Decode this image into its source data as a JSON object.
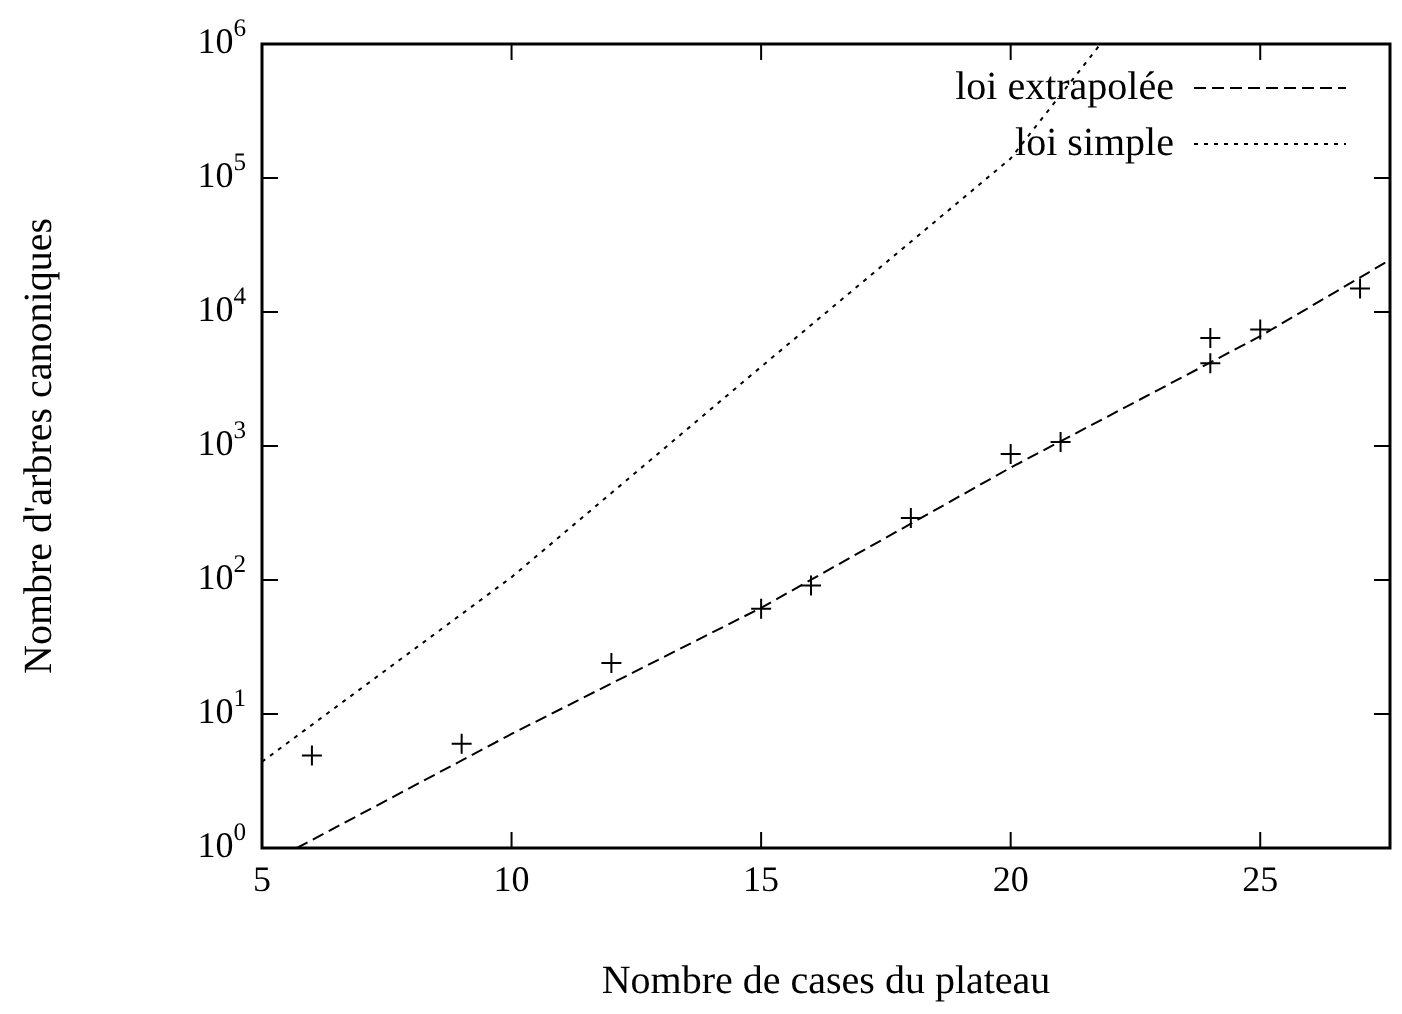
{
  "chart_data": {
    "type": "scatter",
    "xlabel": "Nombre de cases du plateau",
    "ylabel": "Nombre d'arbres canoniques",
    "log": "y",
    "grid": false,
    "legend": "top right",
    "xlim": [
      5,
      27.6
    ],
    "xticks": [
      5,
      10,
      15,
      20,
      25
    ],
    "ylim": [
      1,
      1000000
    ],
    "yticks": [
      {
        "value": 1,
        "label": "10$^{0}$"
      },
      {
        "value": 10,
        "label": "10$^{1}$"
      },
      {
        "value": 100,
        "label": "10$^{2}$"
      },
      {
        "value": 1000,
        "label": "10$^{3}$"
      },
      {
        "value": 10000,
        "label": "10$^{4}$"
      },
      {
        "value": 100000,
        "label": "10$^{5}$"
      },
      {
        "value": 1000000,
        "label": "10$^{6}$"
      }
    ],
    "series": [
      {
        "color": "#000000",
        "marker": "cross",
        "x": [
          6,
          9,
          12,
          15,
          16,
          18,
          20,
          21,
          24,
          24,
          25,
          27
        ],
        "values": [
          4.9,
          6,
          24,
          61,
          91,
          290,
          870,
          1070,
          4150,
          6400,
          7400,
          15000
        ]
      },
      {
        "type": "line",
        "name": "loi extrapolée",
        "color": "#000000",
        "line_style": "dashed",
        "marker": "none",
        "x": [
          5.7,
          10,
          15,
          20,
          25,
          27.6
        ],
        "values": [
          1,
          7.1,
          62,
          690,
          6600,
          24500
        ]
      },
      {
        "type": "line",
        "name": "loi simple",
        "color": "#000000",
        "line_style": "dotted",
        "marker": "none",
        "x": [
          5,
          10,
          15,
          20,
          21.8
        ],
        "values": [
          4.4,
          105,
          3900,
          140000,
          1000000
        ]
      }
    ]
  }
}
